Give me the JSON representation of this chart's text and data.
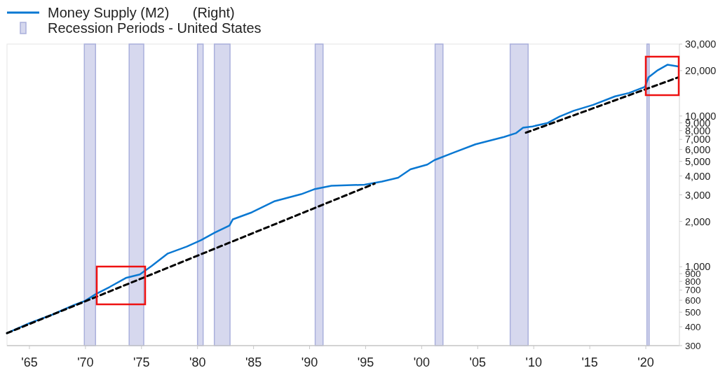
{
  "chart_data": {
    "type": "line",
    "log": "y",
    "xlim": [
      1963,
      2023
    ],
    "xticks": [
      {
        "value": 1965,
        "label": "'65"
      },
      {
        "value": 1970,
        "label": "'70"
      },
      {
        "value": 1975,
        "label": "'75"
      },
      {
        "value": 1980,
        "label": "'80"
      },
      {
        "value": 1985,
        "label": "'85"
      },
      {
        "value": 1990,
        "label": "'90"
      },
      {
        "value": 1995,
        "label": "'95"
      },
      {
        "value": 2000,
        "label": "'00"
      },
      {
        "value": 2005,
        "label": "'05"
      },
      {
        "value": 2010,
        "label": "'10"
      },
      {
        "value": 2015,
        "label": "'15"
      },
      {
        "value": 2020,
        "label": "'20"
      }
    ],
    "ylim": [
      300,
      30000
    ],
    "yticks": [
      300,
      400,
      500,
      600,
      700,
      800,
      900,
      {
        "value": 1000,
        "label": "1,000"
      },
      {
        "value": 2000,
        "label": "2,000"
      },
      {
        "value": 3000,
        "label": "3,000"
      },
      {
        "value": 4000,
        "label": "4,000"
      },
      {
        "value": 5000,
        "label": "5,000"
      },
      {
        "value": 6000,
        "label": "6,000"
      },
      {
        "value": 7000,
        "label": "7,000"
      },
      {
        "value": 8000,
        "label": "8,000"
      },
      {
        "value": 9000,
        "label": "9,000"
      },
      {
        "value": 10000,
        "label": "10,000"
      },
      {
        "value": 20000,
        "label": "20,000"
      },
      {
        "value": 30000,
        "label": "30,000"
      }
    ],
    "grid": false,
    "legend": "top left",
    "line_style": "solid",
    "marker": "none",
    "series": [
      {
        "name": "Money Supply (M2)      (Right)",
        "color": "#0a78d2",
        "x": [
          1963,
          1965,
          1967,
          1968.95,
          1969.95,
          1970.95,
          1972.15,
          1973.6,
          1974.85,
          1975.9,
          1977.35,
          1979.05,
          1980.3,
          1981.55,
          1982.85,
          1983.15,
          1984.85,
          1986.9,
          1989.25,
          1990.4,
          1991.95,
          1993.8,
          1994.9,
          1996.45,
          1997.9,
          1999,
          2000.5,
          2001.15,
          2002.85,
          2004.8,
          2007.35,
          2008.4,
          2009.05,
          2009.9,
          2011.25,
          2012.3,
          2013.55,
          2015.3,
          2017.25,
          2018.5,
          2019.92,
          2020.24,
          2021.07,
          2021.95,
          2022.9
        ],
        "values": [
          363,
          423,
          480,
          557,
          594,
          661,
          734,
          843,
          890,
          1011,
          1225,
          1362,
          1500,
          1687,
          1876,
          2065,
          2297,
          2725,
          3030,
          3266,
          3445,
          3480,
          3500,
          3675,
          3895,
          4430,
          4760,
          5105,
          5716,
          6490,
          7265,
          7690,
          8375,
          8530,
          9000,
          9910,
          10830,
          11860,
          13500,
          14220,
          15600,
          18040,
          20130,
          21900,
          21300
        ]
      },
      {
        "type": "line",
        "color": "#000000",
        "line_style": "dashed",
        "x": [
          1963,
          1995.8
        ],
        "values": [
          363,
          3560
        ]
      },
      {
        "type": "line",
        "color": "#000000",
        "line_style": "dashed",
        "x": [
          2009.3,
          2022.9
        ],
        "values": [
          7750,
          18050
        ]
      }
    ],
    "bands": [
      {
        "axis": "x",
        "from": 1969.9,
        "to": 1970.9,
        "label": "Recession Periods - United States",
        "color": "#d6d8ee"
      },
      {
        "axis": "x",
        "from": 1973.9,
        "to": 1975.2,
        "color": "#d6d8ee"
      },
      {
        "axis": "x",
        "from": 1980.0,
        "to": 1980.5,
        "color": "#d6d8ee"
      },
      {
        "axis": "x",
        "from": 1981.5,
        "to": 1982.9,
        "color": "#d6d8ee"
      },
      {
        "axis": "x",
        "from": 1990.5,
        "to": 1991.2,
        "color": "#d6d8ee"
      },
      {
        "axis": "x",
        "from": 2001.2,
        "to": 2001.9,
        "color": "#d6d8ee"
      },
      {
        "axis": "x",
        "from": 2007.9,
        "to": 2009.5,
        "color": "#d6d8ee"
      },
      {
        "axis": "x",
        "from": 2020.1,
        "to": 2020.3,
        "color": "#d6d8ee"
      }
    ]
  }
}
